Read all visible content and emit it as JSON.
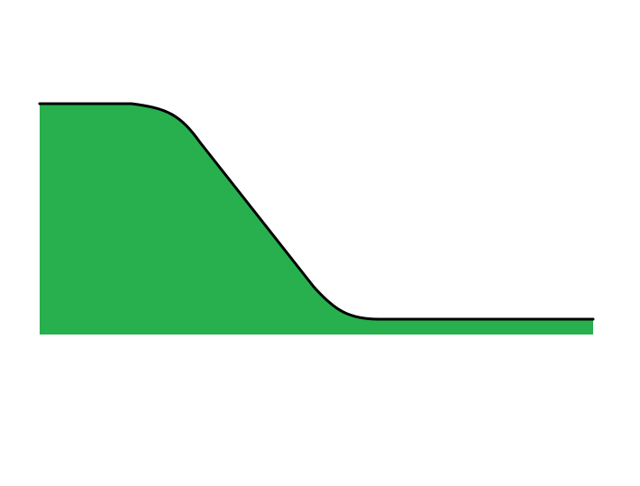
{
  "colors": {
    "background": "#ffffff",
    "fill": "#27b04d",
    "outline": "#000000"
  }
}
